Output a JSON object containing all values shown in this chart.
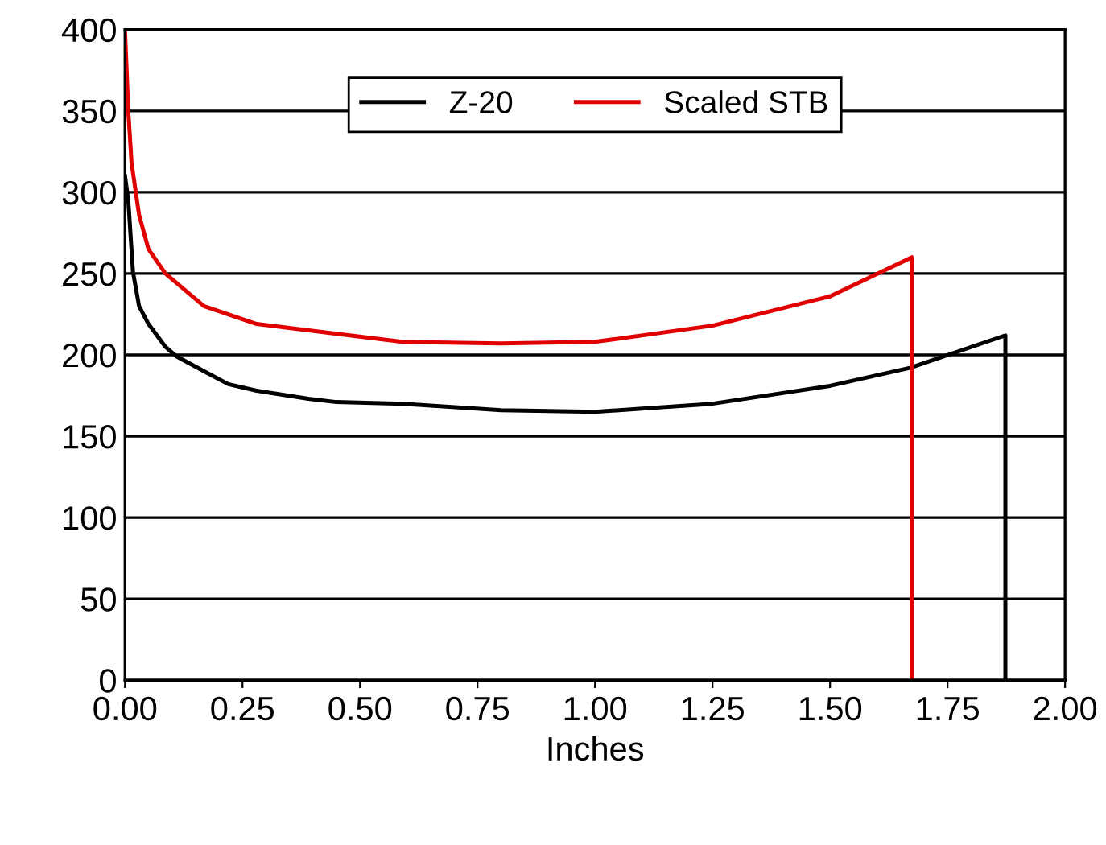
{
  "chart_data": {
    "type": "line",
    "xlabel": "Inches",
    "xlim": [
      0,
      2
    ],
    "xticks": [
      {
        "value": 0,
        "label": "0.00"
      },
      {
        "value": 0.25,
        "label": "0.25"
      },
      {
        "value": 0.5,
        "label": "0.50"
      },
      {
        "value": 0.75,
        "label": "0.75"
      },
      {
        "value": 1,
        "label": "1.00"
      },
      {
        "value": 1.25,
        "label": "1.25"
      },
      {
        "value": 1.5,
        "label": "1.50"
      },
      {
        "value": 1.75,
        "label": "1.75"
      },
      {
        "value": 2,
        "label": "2.00"
      }
    ],
    "ylim": [
      0,
      400
    ],
    "yticks": [
      0,
      50,
      100,
      150,
      200,
      250,
      300,
      350,
      400
    ],
    "grid": "y",
    "legend": "top",
    "marker": "none",
    "line_style": "solid",
    "series": [
      {
        "name": "Z-20",
        "color": "#000000",
        "x": [
          0,
          0.007,
          0.017,
          0.03,
          0.05,
          0.086,
          0.11,
          0.168,
          0.22,
          0.28,
          0.39,
          0.45,
          0.59,
          0.8,
          1.0,
          1.25,
          1.5,
          1.67,
          1.873,
          1.873
        ],
        "values": [
          310,
          295,
          251,
          230,
          219,
          205,
          199,
          190,
          182,
          178,
          173,
          171,
          170,
          166,
          165,
          170,
          181,
          192,
          212,
          0
        ]
      },
      {
        "name": "Scaled STB",
        "color": "#e00000",
        "x": [
          0,
          0.007,
          0.014,
          0.03,
          0.05,
          0.086,
          0.168,
          0.28,
          0.45,
          0.59,
          0.8,
          1.0,
          1.25,
          1.5,
          1.674,
          1.674
        ],
        "values": [
          400,
          350,
          318,
          286,
          265,
          250,
          230,
          219,
          213,
          208,
          207,
          208,
          218,
          236,
          260,
          0
        ]
      }
    ]
  }
}
